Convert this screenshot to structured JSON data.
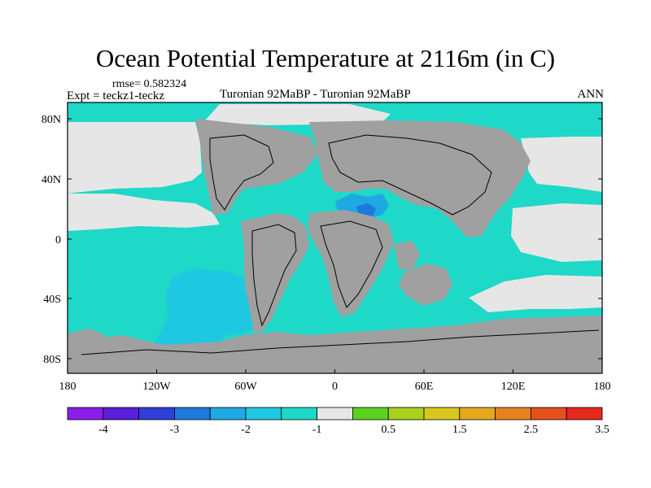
{
  "title": "Ocean Potential Temperature at 2116m (in C)",
  "rmse_label": "rmse= 0.582324",
  "expt_label": "Expt = teckz1-teckz",
  "experiment_label": "Turonian  92MaBP - Turonian  92MaBP",
  "season_label": "ANN",
  "lat_ticks": [
    "80N",
    "40N",
    "0",
    "40S",
    "80S"
  ],
  "lon_ticks": [
    "180",
    "120W",
    "60W",
    "0",
    "60E",
    "120E",
    "180"
  ],
  "colorbar": {
    "colors": [
      "#8a1ee8",
      "#5a1edc",
      "#2f3fd8",
      "#1f78dc",
      "#1ea8e4",
      "#1ec8e0",
      "#1ed8c8",
      "#e6e6e6",
      "#5ad21e",
      "#a8d21e",
      "#d8c81e",
      "#e6a81e",
      "#e6821e",
      "#e6501e",
      "#e6281e"
    ],
    "labels": [
      "-4",
      "-3",
      "-2",
      "-1",
      "0.5",
      "1.5",
      "2.5",
      "3.5"
    ]
  },
  "map_colors": {
    "land": "#a0a0a0",
    "ocean": "#1ed8c8",
    "ocean_cool": "#1ec8e0",
    "ocean_cold": "#1ea8e4",
    "ocean_colder": "#1f78dc",
    "neutral": "#e6e6e6"
  }
}
